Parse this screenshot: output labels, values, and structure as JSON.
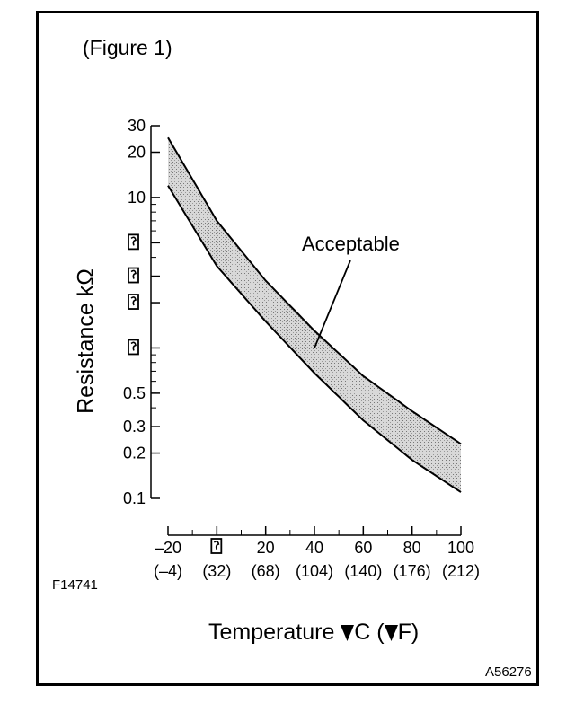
{
  "figure_label": "(Figure 1)",
  "code_left": "F14741",
  "code_right": "A56276",
  "chart_data": {
    "type": "area",
    "xlabel_prefix": "Temperature ",
    "xlabel_unit_c": "C (",
    "xlabel_unit_f": "F)",
    "ylabel": "Resistance kΩ",
    "x_scale": "linear",
    "y_scale": "log",
    "xlim": [
      -20,
      100
    ],
    "ylim": [
      0.1,
      30
    ],
    "y_ticks": [
      {
        "value": 30,
        "label": "30"
      },
      {
        "value": 20,
        "label": "20"
      },
      {
        "value": 10,
        "label": "10"
      },
      {
        "value": 5,
        "label": ""
      },
      {
        "value": 3,
        "label": ""
      },
      {
        "value": 2,
        "label": ""
      },
      {
        "value": 1,
        "label": ""
      },
      {
        "value": 0.5,
        "label": "0.5"
      },
      {
        "value": 0.3,
        "label": "0.3"
      },
      {
        "value": 0.2,
        "label": "0.2"
      },
      {
        "value": 0.1,
        "label": "0.1"
      }
    ],
    "x_ticks": [
      {
        "value": -20,
        "c": "–20",
        "f": "(–4)"
      },
      {
        "value": 0,
        "c": "",
        "f": "(32)"
      },
      {
        "value": 20,
        "c": "20",
        "f": "(68)"
      },
      {
        "value": 40,
        "c": "40",
        "f": "(104)"
      },
      {
        "value": 60,
        "c": "60",
        "f": "(140)"
      },
      {
        "value": 80,
        "c": "80",
        "f": "(176)"
      },
      {
        "value": 100,
        "c": "100",
        "f": "(212)"
      }
    ],
    "band": {
      "x": [
        -20,
        0,
        20,
        40,
        60,
        80,
        100
      ],
      "upper": [
        25,
        7,
        2.8,
        1.3,
        0.65,
        0.38,
        0.23
      ],
      "lower": [
        12,
        3.5,
        1.5,
        0.68,
        0.33,
        0.18,
        0.11
      ]
    },
    "annotation": {
      "text": "Acceptable",
      "x": 40,
      "y": 1.0
    }
  }
}
